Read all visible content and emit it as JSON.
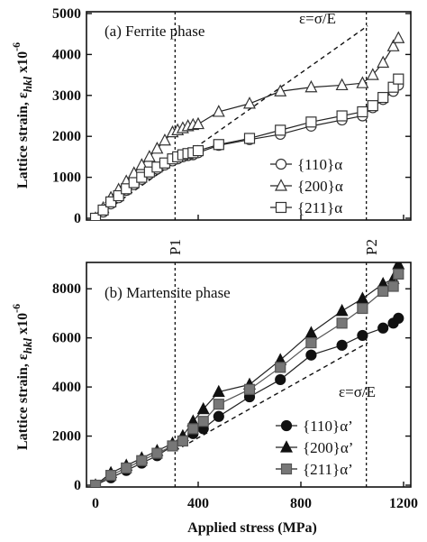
{
  "chart_data": [
    {
      "type": "line",
      "title": "(a) Ferrite phase",
      "xlabel": "",
      "ylabel": "Lattice strain, εhkl x10",
      "ylabel_main": "Lattice strain, ε",
      "ylabel_sub": "hkl",
      "ylabel_mult": " x10",
      "ylabel_exp": "-6",
      "xlim": [
        0,
        1200
      ],
      "ylim": [
        0,
        5000
      ],
      "y_ticks": [
        "0",
        "1000",
        "2000",
        "3000",
        "4000",
        "5000"
      ],
      "x_ticks": [],
      "reference_line": {
        "label": "ε=σ/E",
        "x": [
          0,
          1060
        ],
        "y": [
          0,
          4700
        ]
      },
      "vlines": [
        {
          "label": "P1",
          "x": 310
        },
        {
          "label": "P2",
          "x": 1055
        }
      ],
      "series": [
        {
          "name": "{110}α",
          "marker": "circle",
          "x": [
            0,
            30,
            60,
            90,
            120,
            150,
            180,
            210,
            240,
            270,
            300,
            320,
            340,
            360,
            380,
            400,
            480,
            600,
            720,
            840,
            960,
            1040,
            1080,
            1120,
            1160,
            1180
          ],
          "y": [
            0,
            150,
            350,
            500,
            680,
            820,
            950,
            1080,
            1200,
            1300,
            1400,
            1450,
            1500,
            1530,
            1550,
            1600,
            1780,
            1920,
            2050,
            2250,
            2400,
            2500,
            2700,
            2900,
            3100,
            3250
          ]
        },
        {
          "name": "{200}α",
          "marker": "triangle",
          "x": [
            0,
            30,
            60,
            90,
            120,
            150,
            180,
            210,
            240,
            270,
            300,
            320,
            340,
            360,
            380,
            400,
            480,
            600,
            720,
            840,
            960,
            1040,
            1080,
            1120,
            1160,
            1180
          ],
          "y": [
            0,
            250,
            500,
            700,
            900,
            1100,
            1300,
            1500,
            1700,
            1900,
            2100,
            2150,
            2200,
            2250,
            2280,
            2300,
            2600,
            2800,
            3100,
            3200,
            3250,
            3300,
            3500,
            3800,
            4200,
            4400
          ]
        },
        {
          "name": "{211}α",
          "marker": "square",
          "x": [
            0,
            30,
            60,
            90,
            120,
            150,
            180,
            210,
            240,
            270,
            300,
            320,
            340,
            360,
            380,
            400,
            480,
            600,
            720,
            840,
            960,
            1040,
            1080,
            1120,
            1160,
            1180
          ],
          "y": [
            0,
            200,
            400,
            550,
            720,
            870,
            1000,
            1130,
            1250,
            1350,
            1450,
            1500,
            1550,
            1580,
            1600,
            1650,
            1800,
            1950,
            2150,
            2350,
            2500,
            2600,
            2750,
            2950,
            3200,
            3400
          ]
        }
      ]
    },
    {
      "type": "line",
      "title": "(b) Martensite phase",
      "xlabel": "Applied stress (MPa)",
      "ylabel": "Lattice strain, εhkl x10",
      "ylabel_main": "Lattice strain, ε",
      "ylabel_sub": "hkl",
      "ylabel_mult": " x10",
      "ylabel_exp": "-6",
      "xlim": [
        0,
        1200
      ],
      "ylim": [
        0,
        9000
      ],
      "y_ticks": [
        "0",
        "2000",
        "4000",
        "6000",
        "8000"
      ],
      "x_ticks": [
        "0",
        "400",
        "800",
        "1200"
      ],
      "reference_line": {
        "label": "ε=σ/E",
        "x": [
          310,
          1060
        ],
        "y": [
          1400,
          5800
        ]
      },
      "vlines": [
        {
          "label": "P1",
          "x": 310
        },
        {
          "label": "P2",
          "x": 1055
        }
      ],
      "series": [
        {
          "name": "{110}α’",
          "marker": "filled-circle",
          "x": [
            0,
            60,
            120,
            180,
            240,
            300,
            340,
            380,
            420,
            480,
            600,
            720,
            840,
            960,
            1040,
            1120,
            1160,
            1180
          ],
          "y": [
            0,
            300,
            600,
            900,
            1200,
            1600,
            1800,
            2100,
            2300,
            2800,
            3600,
            4300,
            5300,
            5700,
            6100,
            6400,
            6600,
            6800
          ]
        },
        {
          "name": "{200}α’",
          "marker": "filled-triangle",
          "x": [
            0,
            60,
            120,
            180,
            240,
            300,
            340,
            380,
            420,
            480,
            600,
            720,
            840,
            960,
            1040,
            1120,
            1160,
            1180
          ],
          "y": [
            0,
            500,
            800,
            1100,
            1400,
            1700,
            2000,
            2600,
            3100,
            3800,
            4100,
            5100,
            6200,
            7100,
            7600,
            8200,
            8400,
            9000
          ]
        },
        {
          "name": "{211}α’",
          "marker": "filled-square",
          "x": [
            0,
            60,
            120,
            180,
            240,
            300,
            340,
            380,
            420,
            480,
            600,
            720,
            840,
            960,
            1040,
            1120,
            1160,
            1180
          ],
          "y": [
            0,
            400,
            700,
            1000,
            1300,
            1600,
            1800,
            2300,
            2600,
            3300,
            3900,
            4800,
            5800,
            6600,
            7200,
            7900,
            8100,
            8600
          ]
        }
      ]
    }
  ]
}
